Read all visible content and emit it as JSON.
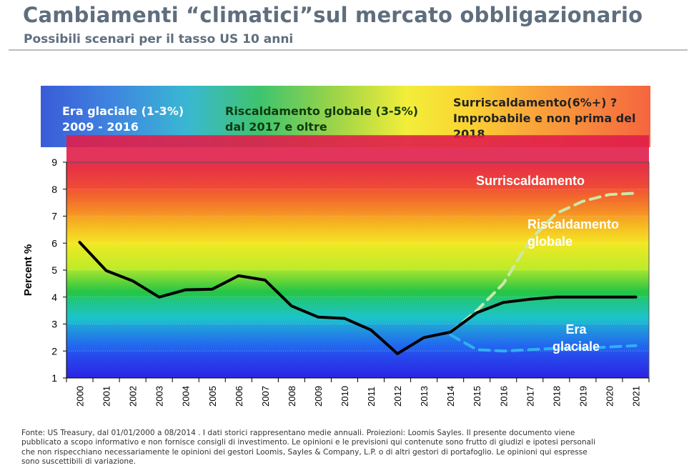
{
  "header": {
    "title": "Cambiamenti “climatici”sul mercato obbligazionario",
    "subtitle": "Possibili scenari per il tasso US 10 anni"
  },
  "banner": {
    "col1": [
      "Era glaciale (1-3%)",
      "2009 - 2016"
    ],
    "col2": [
      "Riscaldamento globale (3-5%)",
      "dal 2017 e oltre"
    ],
    "col3": [
      "Surriscaldamento(6%+) ?",
      "Improbabile e non prima del",
      "2018"
    ]
  },
  "chart_data": {
    "type": "line",
    "ylabel": "Percent %",
    "xlabel": "",
    "ylim": [
      1,
      9
    ],
    "yticks": [
      "1",
      "2",
      "3",
      "4",
      "5",
      "6",
      "7",
      "8",
      "9"
    ],
    "categories": [
      "2000",
      "2001",
      "2002",
      "2003",
      "2004",
      "2005",
      "2006",
      "2007",
      "2008",
      "2009",
      "2010",
      "2011",
      "2012",
      "2013",
      "2014",
      "2015",
      "2016",
      "2017",
      "2018",
      "2019",
      "2020",
      "2021"
    ],
    "grid": true,
    "background_bands": [
      "#2222e8",
      "#1f6ff0",
      "#17c7d0",
      "#1fc43a",
      "#c9f21c",
      "#f2ee20",
      "#f7b81a",
      "#f0622a",
      "#e01e4a"
    ],
    "zone_labels": [
      {
        "text": [
          "Surriscaldamento"
        ],
        "color": "#ffffff"
      },
      {
        "text": [
          "Riscaldamento",
          "globale"
        ],
        "color": "#ffffff"
      },
      {
        "text": [
          "Era",
          "glaciale"
        ],
        "color": "#ffffff"
      }
    ],
    "series": [
      {
        "values": [
          6.03,
          4.98,
          4.6,
          4.0,
          4.27,
          4.29,
          4.79,
          4.63,
          3.67,
          3.26,
          3.21,
          2.78,
          1.9,
          2.5,
          2.7,
          3.42,
          3.8,
          3.92,
          4.0,
          4.0,
          4.0,
          4.0
        ],
        "color": "#000000",
        "style": "solid"
      },
      {
        "values": [
          null,
          null,
          null,
          null,
          null,
          null,
          null,
          null,
          null,
          null,
          null,
          null,
          null,
          null,
          2.7,
          3.5,
          4.5,
          6.1,
          7.1,
          7.55,
          7.8,
          7.85
        ],
        "color": "#cde8a8",
        "style": "dashed"
      },
      {
        "values": [
          null,
          null,
          null,
          null,
          null,
          null,
          null,
          null,
          null,
          null,
          null,
          null,
          null,
          null,
          2.6,
          2.05,
          2.0,
          2.05,
          2.1,
          2.1,
          2.15,
          2.2
        ],
        "color": "#2fb0f0",
        "style": "dashed"
      }
    ]
  },
  "footnote": [
    "Fonte: US Treasury, dal 01/01/2000 a 08/2014 . I dati storici rappresentano medie annuali. Proiezioni: Loomis Sayles. Il presente documento viene",
    "pubblicato a scopo informativo e non fornisce consigli di investimento. Le opinioni e le previsioni qui contenute sono frutto di giudizi e ipotesi personali",
    "che non rispecchiano necessariamente le opinioni dei gestori Loomis, Sayles & Company, L.P. o di altri gestori di portafoglio. Le opinioni qui espresse",
    "sono suscettibili di variazione."
  ]
}
